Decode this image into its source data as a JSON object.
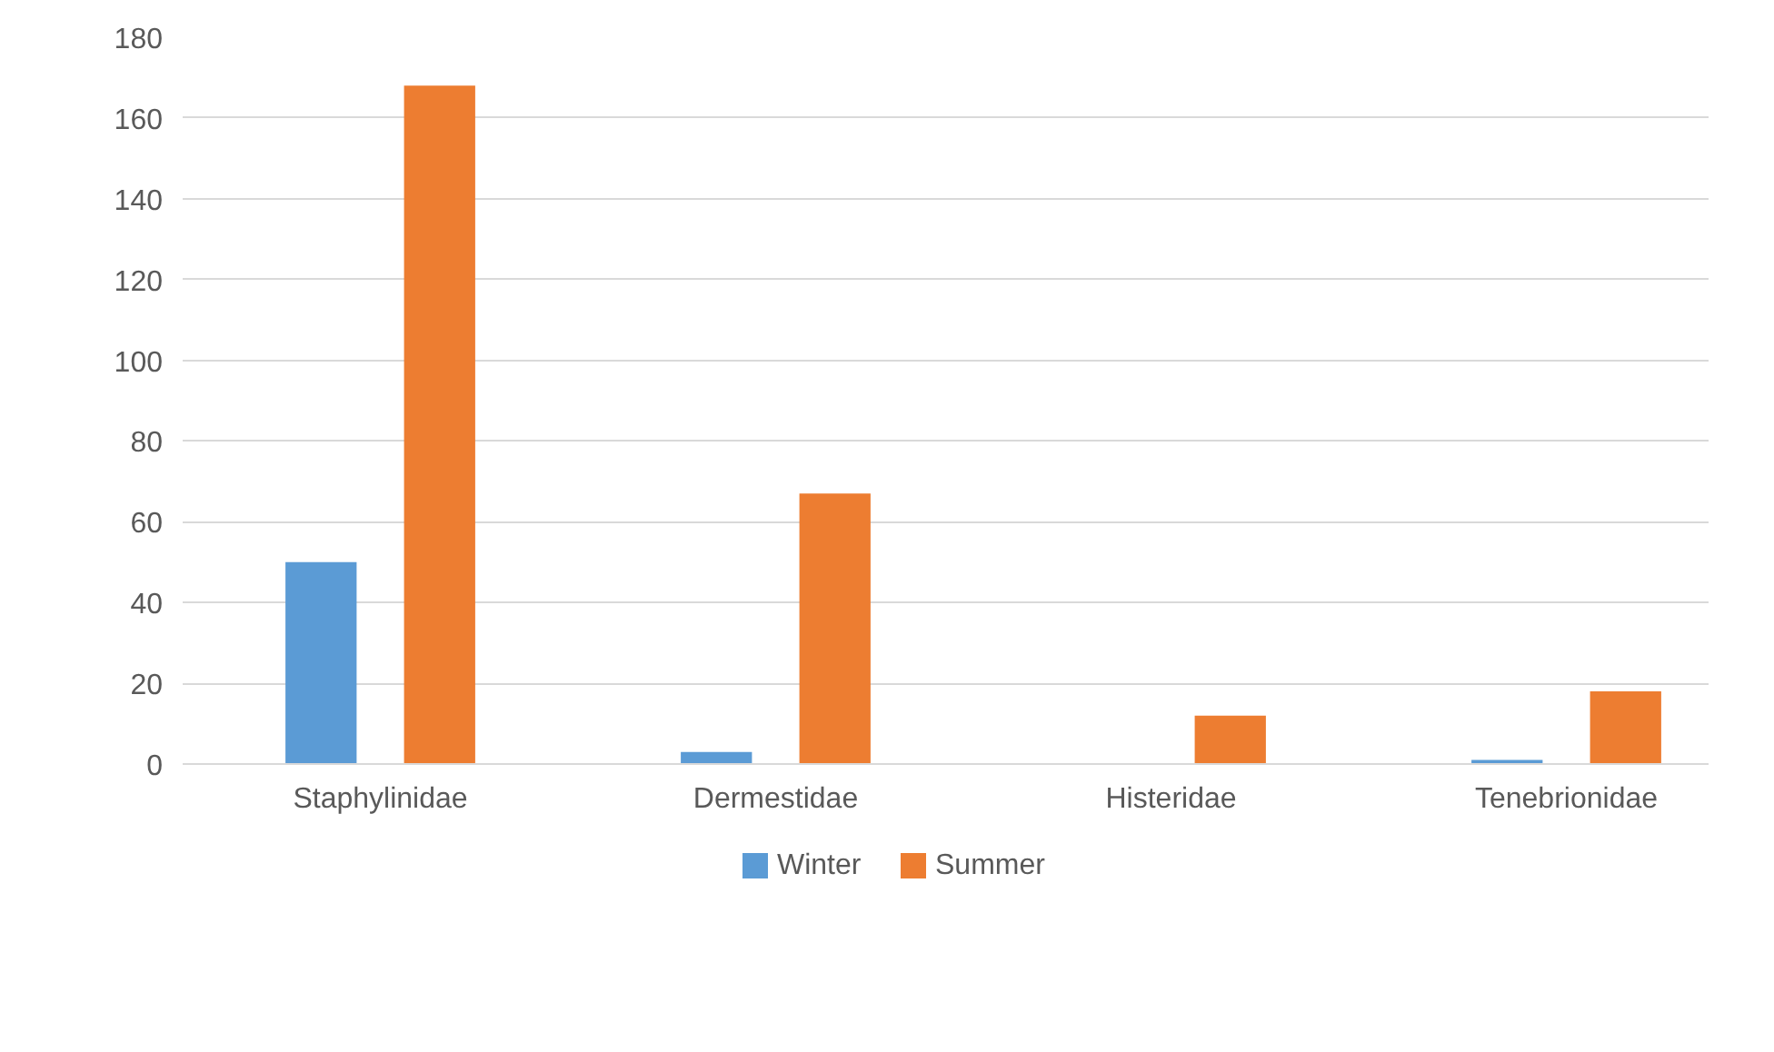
{
  "chart_data": {
    "type": "bar",
    "categories": [
      "Staphylinidae",
      "Dermestidae",
      "Histeridae",
      "Tenebrionidae"
    ],
    "series": [
      {
        "name": "Winter",
        "color": "#5b9bd5",
        "values": [
          50,
          3,
          0,
          1
        ]
      },
      {
        "name": "Summer",
        "color": "#ed7d31",
        "values": [
          168,
          67,
          12,
          18
        ]
      }
    ],
    "ylim": [
      0,
      180
    ],
    "yticks": [
      0,
      20,
      40,
      60,
      80,
      100,
      120,
      140,
      160,
      180
    ],
    "grid": "y",
    "legend": "bottom"
  }
}
